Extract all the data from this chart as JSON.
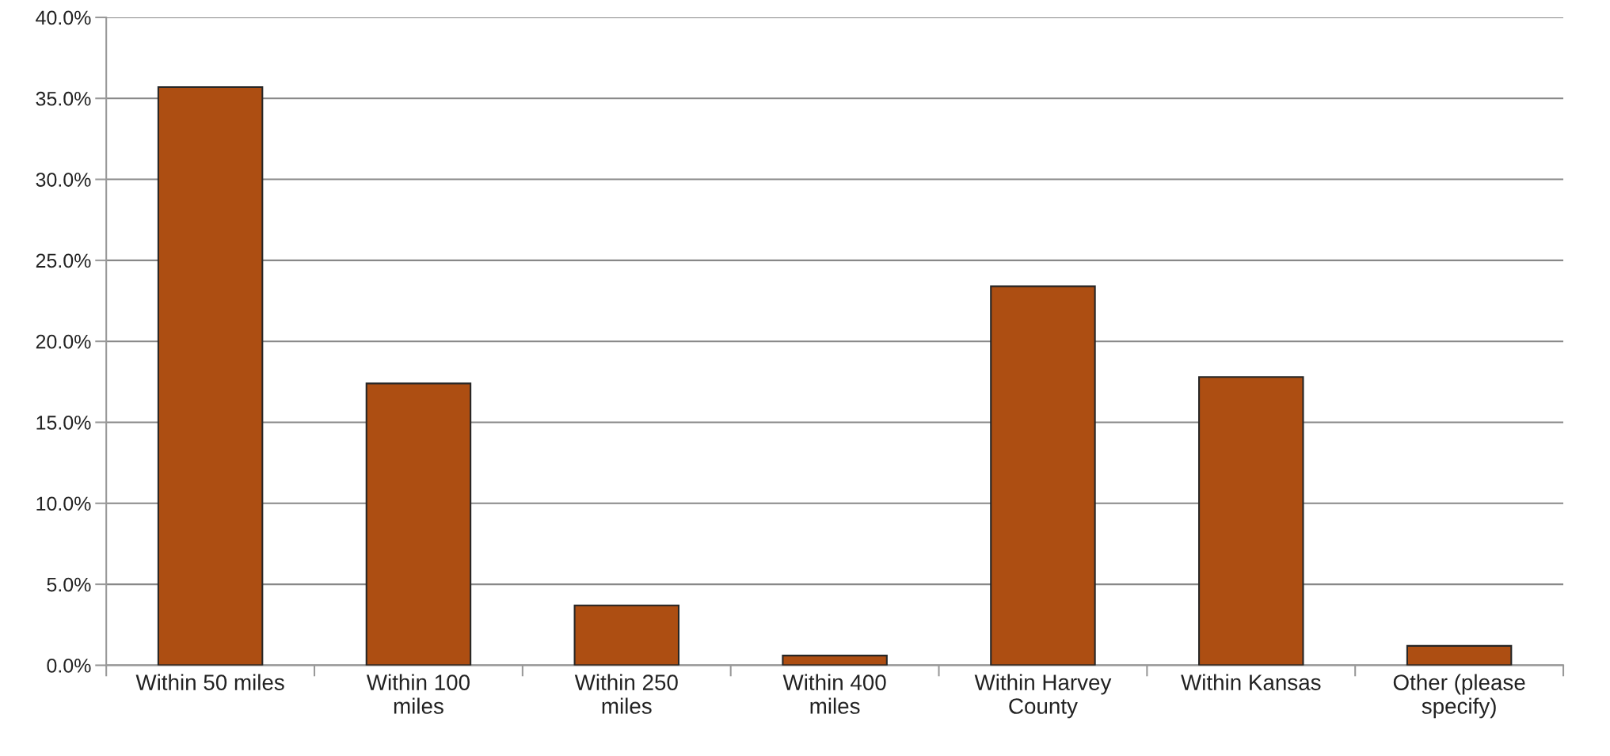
{
  "chart_data": {
    "type": "bar",
    "categories": [
      "Within 50 miles",
      "Within 100\nmiles",
      "Within 250\nmiles",
      "Within 400\nmiles",
      "Within Harvey\nCounty",
      "Within Kansas",
      "Other (please\nspecify)"
    ],
    "values": [
      35.7,
      17.4,
      3.7,
      0.6,
      23.4,
      17.8,
      1.2
    ],
    "color": "#ad4e12",
    "ylim": [
      0,
      40
    ],
    "yticks": [
      {
        "value": 0,
        "label": "0.0%"
      },
      {
        "value": 5,
        "label": "5.0%"
      },
      {
        "value": 10,
        "label": "10.0%"
      },
      {
        "value": 15,
        "label": "15.0%"
      },
      {
        "value": 20,
        "label": "20.0%"
      },
      {
        "value": 25,
        "label": "25.0%"
      },
      {
        "value": 30,
        "label": "30.0%"
      },
      {
        "value": 35,
        "label": "35.0%"
      },
      {
        "value": 40,
        "label": "40.0%"
      }
    ],
    "grid": "y",
    "legend": false
  }
}
